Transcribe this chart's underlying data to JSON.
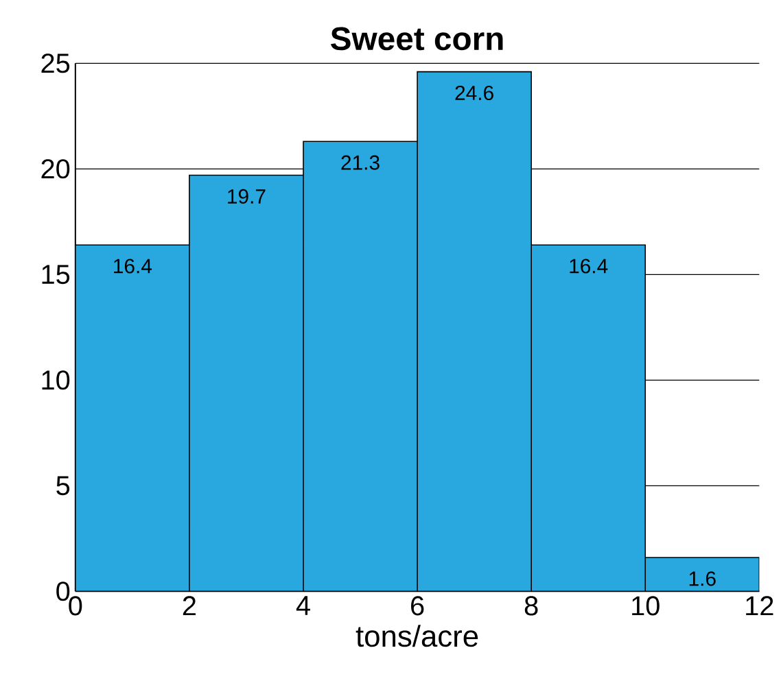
{
  "chart_data": {
    "type": "histogram",
    "title": "Sweet corn",
    "xlabel": "tons/acre",
    "bins": [
      0,
      2,
      4,
      6,
      8,
      10,
      12
    ],
    "values": [
      16.4,
      19.7,
      21.3,
      24.6,
      16.4,
      1.6
    ],
    "color": "#29a8e0",
    "xlim": [
      0,
      12
    ],
    "xticks": [
      0,
      2,
      4,
      6,
      8,
      10,
      12
    ],
    "ylim": [
      0,
      25
    ],
    "yticks": [
      0,
      5,
      10,
      15,
      20,
      25
    ],
    "grid": "y",
    "data_labels": true
  }
}
